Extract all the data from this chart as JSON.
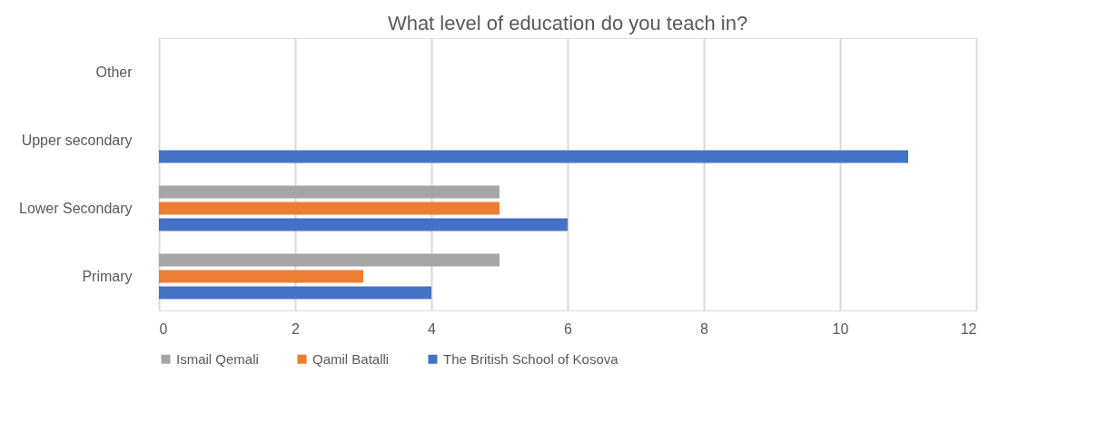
{
  "chart_data": {
    "type": "bar",
    "orientation": "horizontal",
    "title": "What level of education do you teach in?",
    "categories": [
      "Other",
      "Upper secondary",
      "Lower Secondary",
      "Primary"
    ],
    "series": [
      {
        "name": "Ismail Qemali",
        "color": "#a5a5a5",
        "values": [
          0,
          0,
          5,
          5
        ]
      },
      {
        "name": "Qamil Batalli",
        "color": "#ed7d31",
        "values": [
          0,
          0,
          5,
          3
        ]
      },
      {
        "name": "The British School of Kosova",
        "color": "#4472c4",
        "values": [
          0,
          11,
          6,
          4
        ]
      }
    ],
    "xlim": [
      0,
      12
    ],
    "xticks": [
      0,
      2,
      4,
      6,
      8,
      10,
      12
    ],
    "grid": "x",
    "legend": "bottom"
  }
}
